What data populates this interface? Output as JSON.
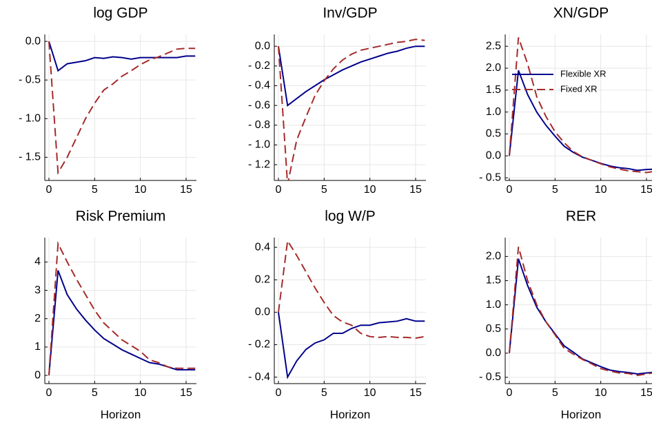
{
  "chart_data": [
    {
      "type": "line",
      "title": "log GDP",
      "x": [
        0,
        1,
        2,
        3,
        4,
        5,
        6,
        7,
        8,
        9,
        10,
        11,
        12,
        13,
        14,
        15,
        16
      ],
      "xlim": [
        -0.45,
        16.13
      ],
      "xticks": [
        0,
        5,
        10,
        15
      ],
      "ylim": [
        -1.8,
        0.09
      ],
      "yticks": [
        {
          "value": 0,
          "label": "0.0"
        },
        {
          "value": -0.5,
          "label": "- 0.5"
        },
        {
          "value": -1,
          "label": "- 1.0"
        },
        {
          "value": -1.5,
          "label": "- 1.5"
        }
      ],
      "grid": true,
      "series": [
        {
          "color": "#00008b",
          "style": "solid",
          "values": [
            0,
            -0.38,
            -0.29,
            -0.27,
            -0.25,
            -0.21,
            -0.22,
            -0.2,
            -0.21,
            -0.23,
            -0.21,
            -0.21,
            -0.21,
            -0.21,
            -0.21,
            -0.19,
            -0.19
          ]
        },
        {
          "color": "#a52a2a",
          "style": "dashed",
          "values": [
            0,
            -1.7,
            -1.5,
            -1.25,
            -1.0,
            -0.8,
            -0.63,
            -0.55,
            -0.45,
            -0.38,
            -0.3,
            -0.24,
            -0.2,
            -0.15,
            -0.1,
            -0.09,
            -0.09
          ]
        }
      ]
    },
    {
      "type": "line",
      "title": "Inv/GDP",
      "x": [
        0,
        1,
        2,
        3,
        4,
        5,
        6,
        7,
        8,
        9,
        10,
        11,
        12,
        13,
        14,
        15,
        16
      ],
      "xlim": [
        -0.45,
        16.13
      ],
      "xticks": [
        0,
        5,
        10,
        15
      ],
      "ylim": [
        -1.36,
        0.12
      ],
      "yticks": [
        {
          "value": 0,
          "label": "0.0"
        },
        {
          "value": -0.2,
          "label": "- 0.2"
        },
        {
          "value": -0.4,
          "label": "- 0.4"
        },
        {
          "value": -0.6,
          "label": "- 0.6"
        },
        {
          "value": -0.8,
          "label": "- 0.8"
        },
        {
          "value": -1,
          "label": "- 1.0"
        },
        {
          "value": -1.2,
          "label": "- 1.2"
        }
      ],
      "grid": true,
      "series": [
        {
          "color": "#00008b",
          "style": "solid",
          "values": [
            0,
            -0.6,
            -0.53,
            -0.46,
            -0.4,
            -0.34,
            -0.29,
            -0.24,
            -0.2,
            -0.16,
            -0.13,
            -0.1,
            -0.07,
            -0.05,
            -0.02,
            0.0,
            0.0
          ]
        },
        {
          "color": "#a52a2a",
          "style": "dashed",
          "values": [
            0,
            -1.4,
            -0.95,
            -0.72,
            -0.5,
            -0.35,
            -0.23,
            -0.14,
            -0.08,
            -0.04,
            -0.02,
            0.0,
            0.02,
            0.04,
            0.05,
            0.07,
            0.06
          ]
        }
      ]
    },
    {
      "type": "line",
      "title": "XN/GDP",
      "x": [
        0,
        1,
        2,
        3,
        4,
        5,
        6,
        7,
        8,
        9,
        10,
        11,
        12,
        13,
        14,
        15,
        16
      ],
      "xlim": [
        -0.45,
        16.13
      ],
      "xticks": [
        0,
        5,
        10,
        15
      ],
      "ylim": [
        -0.56,
        2.77
      ],
      "yticks": [
        2.5,
        {
          "value": 2,
          "label": "2.0"
        },
        1.5,
        {
          "value": 1,
          "label": "1.0"
        },
        0.5,
        {
          "value": 0,
          "label": "0.0"
        },
        {
          "value": -0.5,
          "label": "- 0.5"
        }
      ],
      "grid": true,
      "legend": "top-right",
      "series": [
        {
          "name": "Flexible XR",
          "color": "#00008b",
          "style": "solid",
          "values": [
            0,
            1.95,
            1.4,
            1.0,
            0.7,
            0.45,
            0.22,
            0.08,
            -0.03,
            -0.1,
            -0.17,
            -0.23,
            -0.27,
            -0.29,
            -0.33,
            -0.31,
            -0.3
          ]
        },
        {
          "name": "Fixed XR",
          "color": "#a52a2a",
          "style": "dashed",
          "values": [
            0,
            2.7,
            2.1,
            1.35,
            0.9,
            0.55,
            0.3,
            0.1,
            -0.02,
            -0.1,
            -0.18,
            -0.25,
            -0.3,
            -0.34,
            -0.36,
            -0.38,
            -0.35
          ]
        }
      ]
    },
    {
      "type": "line",
      "title": "Risk Premium",
      "xlabel": "Horizon",
      "x": [
        0,
        1,
        2,
        3,
        4,
        5,
        6,
        7,
        8,
        9,
        10,
        11,
        12,
        13,
        14,
        15,
        16
      ],
      "xlim": [
        -0.45,
        16.13
      ],
      "xticks": [
        0,
        5,
        10,
        15
      ],
      "ylim": [
        -0.29,
        4.86
      ],
      "yticks": [
        0,
        1,
        2,
        3,
        4
      ],
      "grid": true,
      "series": [
        {
          "color": "#00008b",
          "style": "solid",
          "values": [
            0,
            3.7,
            2.85,
            2.35,
            1.95,
            1.6,
            1.3,
            1.1,
            0.9,
            0.75,
            0.6,
            0.45,
            0.4,
            0.3,
            0.2,
            0.2,
            0.2
          ]
        },
        {
          "color": "#a52a2a",
          "style": "dashed",
          "values": [
            0,
            4.65,
            4.0,
            3.4,
            2.85,
            2.3,
            1.85,
            1.55,
            1.25,
            1.05,
            0.85,
            0.55,
            0.45,
            0.3,
            0.25,
            0.25,
            0.25
          ]
        }
      ]
    },
    {
      "type": "line",
      "title": "log W/P",
      "xlabel": "Horizon",
      "x": [
        0,
        1,
        2,
        3,
        4,
        5,
        6,
        7,
        8,
        9,
        10,
        11,
        12,
        13,
        14,
        15,
        16
      ],
      "xlim": [
        -0.45,
        16.13
      ],
      "xticks": [
        0,
        5,
        10,
        15
      ],
      "ylim": [
        -0.44,
        0.46
      ],
      "yticks": [
        0.4,
        0.2,
        {
          "value": 0,
          "label": "0.0"
        },
        {
          "value": -0.2,
          "label": "- 0.2"
        },
        {
          "value": -0.4,
          "label": "- 0.4"
        }
      ],
      "grid": true,
      "series": [
        {
          "color": "#00008b",
          "style": "solid",
          "values": [
            0,
            -0.4,
            -0.3,
            -0.23,
            -0.19,
            -0.17,
            -0.13,
            -0.13,
            -0.1,
            -0.08,
            -0.08,
            -0.065,
            -0.06,
            -0.055,
            -0.04,
            -0.055,
            -0.055
          ]
        },
        {
          "color": "#a52a2a",
          "style": "dashed",
          "values": [
            0,
            0.44,
            0.35,
            0.25,
            0.15,
            0.06,
            -0.02,
            -0.06,
            -0.08,
            -0.13,
            -0.15,
            -0.155,
            -0.15,
            -0.155,
            -0.155,
            -0.16,
            -0.15
          ]
        }
      ]
    },
    {
      "type": "line",
      "title": "RER",
      "xlabel": "Horizon",
      "x": [
        0,
        1,
        2,
        3,
        4,
        5,
        6,
        7,
        8,
        9,
        10,
        11,
        12,
        13,
        14,
        15,
        16
      ],
      "xlim": [
        -0.45,
        16.13
      ],
      "xticks": [
        0,
        5,
        10,
        15
      ],
      "ylim": [
        -0.63,
        2.39
      ],
      "yticks": [
        {
          "value": 2,
          "label": "2.0"
        },
        1.5,
        {
          "value": 1,
          "label": "1.0"
        },
        0.5,
        {
          "value": 0,
          "label": "0.0"
        },
        {
          "value": -0.5,
          "label": "- 0.5"
        }
      ],
      "grid": true,
      "series": [
        {
          "color": "#00008b",
          "style": "solid",
          "values": [
            0,
            1.95,
            1.4,
            0.95,
            0.65,
            0.4,
            0.15,
            0.02,
            -0.12,
            -0.2,
            -0.28,
            -0.35,
            -0.38,
            -0.4,
            -0.43,
            -0.41,
            -0.39
          ]
        },
        {
          "color": "#a52a2a",
          "style": "dashed",
          "values": [
            0,
            2.2,
            1.5,
            1.0,
            0.65,
            0.38,
            0.1,
            -0.02,
            -0.13,
            -0.22,
            -0.32,
            -0.37,
            -0.41,
            -0.42,
            -0.46,
            -0.43,
            -0.4
          ]
        }
      ]
    }
  ]
}
